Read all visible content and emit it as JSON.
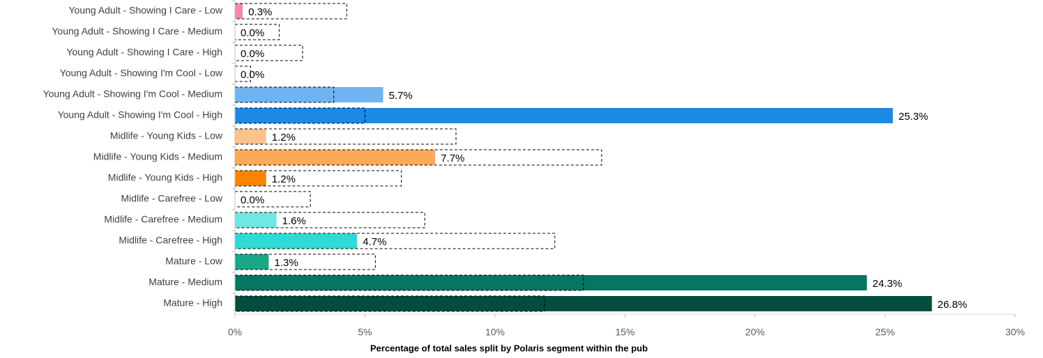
{
  "chart_data": {
    "type": "bar",
    "orientation": "horizontal",
    "categories": [
      "Young Adult - Showing I Care - Low",
      "Young Adult - Showing I Care - Medium",
      "Young Adult - Showing I Care - High",
      "Young Adult - Showing I'm Cool - Low",
      "Young Adult - Showing I'm Cool - Medium",
      "Young Adult - Showing I'm Cool - High",
      "Midlife - Young Kids - Low",
      "Midlife - Young Kids - Medium",
      "Midlife - Young Kids - High",
      "Midlife - Carefree - Low",
      "Midlife - Carefree - Medium",
      "Midlife - Carefree - High",
      "Mature - Low",
      "Mature - Medium",
      "Mature - High"
    ],
    "values": [
      0.3,
      0.0,
      0.0,
      0.0,
      5.7,
      25.3,
      1.2,
      7.7,
      1.2,
      0.0,
      1.6,
      4.7,
      1.3,
      24.3,
      26.8
    ],
    "value_labels": [
      "0.3%",
      "0.0%",
      "0.0%",
      "0.0%",
      "5.7%",
      "25.3%",
      "1.2%",
      "7.7%",
      "1.2%",
      "0.0%",
      "1.6%",
      "4.7%",
      "1.3%",
      "24.3%",
      "26.8%"
    ],
    "colors": [
      "#f08aab",
      "#e0608e",
      "#c8376f",
      "#a9d2f5",
      "#6fb3f0",
      "#1e88e5",
      "#fdc28a",
      "#fba95a",
      "#fb8300",
      "#a8f0ec",
      "#6ee8e0",
      "#2edbd4",
      "#18a887",
      "#067561",
      "#024d3c"
    ],
    "benchmark": [
      4.3,
      1.7,
      2.6,
      0.6,
      3.8,
      5.0,
      8.5,
      14.1,
      6.4,
      2.9,
      7.3,
      12.3,
      5.4,
      13.4,
      11.9
    ],
    "xlim": [
      0,
      30
    ],
    "xticks": [
      {
        "value": 0,
        "label": "0%"
      },
      {
        "value": 5,
        "label": "5%"
      },
      {
        "value": 10,
        "label": "10%"
      },
      {
        "value": 15,
        "label": "15%"
      },
      {
        "value": 20,
        "label": "20%"
      },
      {
        "value": 25,
        "label": "25%"
      },
      {
        "value": 30,
        "label": "30%"
      }
    ],
    "x_label": "Percentage of total sales split by Polaris segment within the pub"
  }
}
